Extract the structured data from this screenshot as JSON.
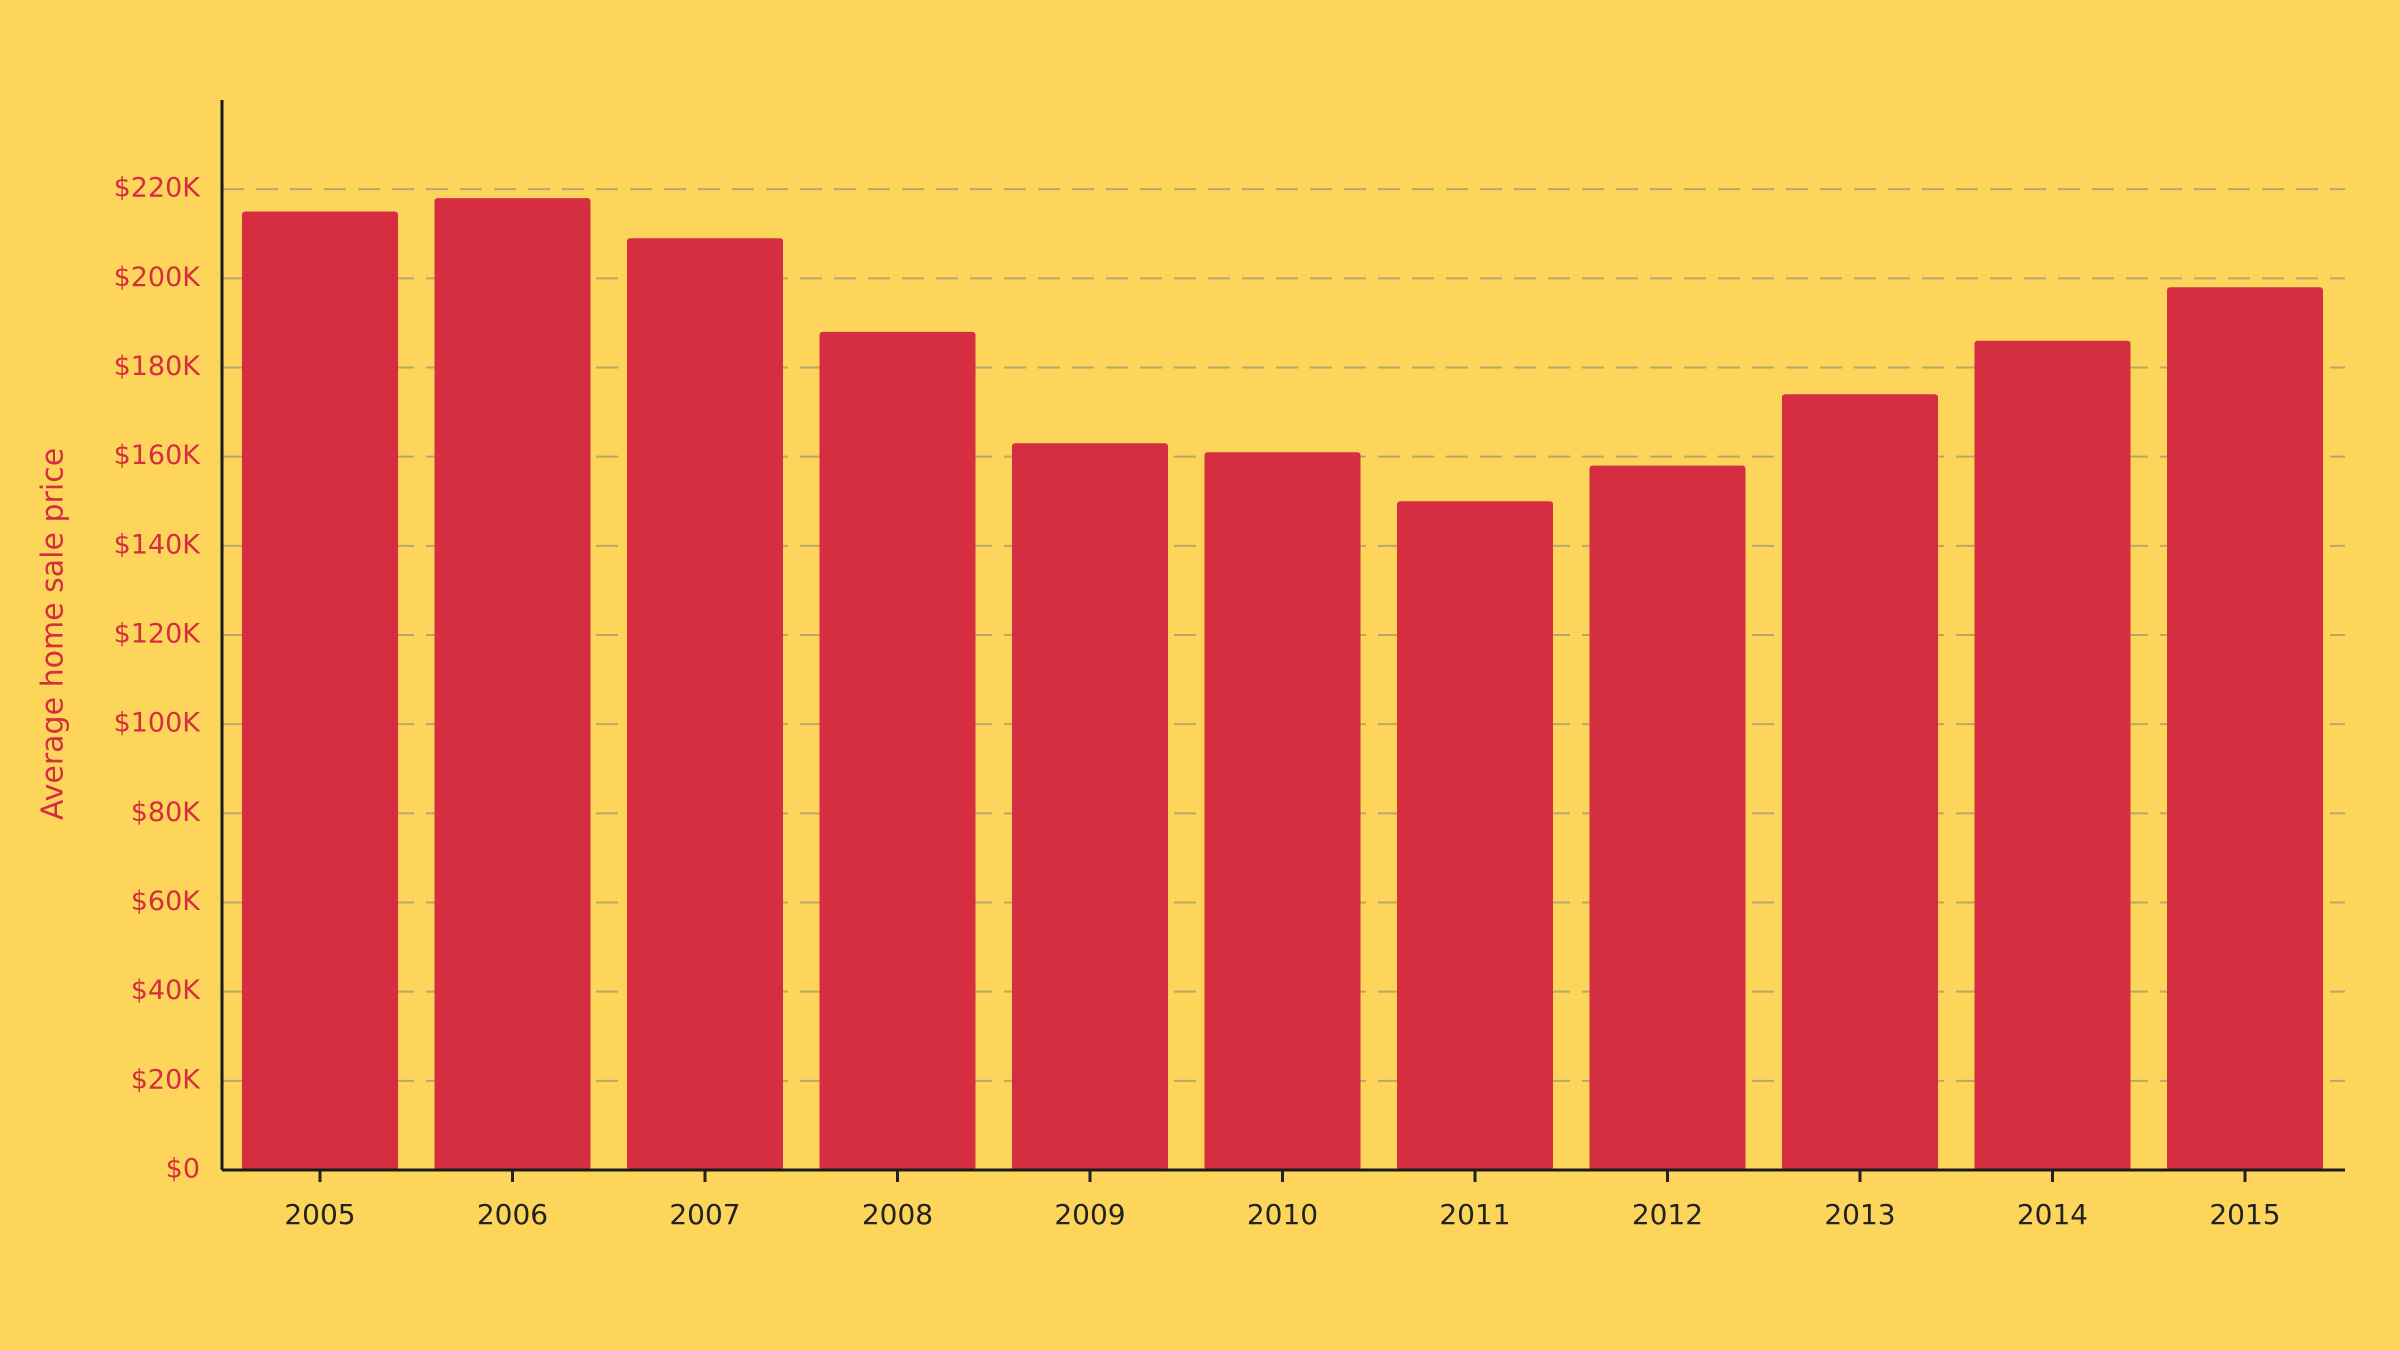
{
  "chart_data": {
    "type": "bar",
    "y_label": "Average home sale price",
    "categories": [
      "2005",
      "2006",
      "2007",
      "2008",
      "2009",
      "2010",
      "2011",
      "2012",
      "2013",
      "2014",
      "2015"
    ],
    "values": [
      215000,
      218000,
      209000,
      188000,
      163000,
      161000,
      150000,
      158000,
      174000,
      186000,
      198000
    ],
    "color": "#d42e40",
    "ylim": [
      0,
      240000
    ],
    "yticks": [
      {
        "value": 0,
        "label": "$0"
      },
      {
        "value": 20000,
        "label": "$20K"
      },
      {
        "value": 40000,
        "label": "$40K"
      },
      {
        "value": 60000,
        "label": "$60K"
      },
      {
        "value": 80000,
        "label": "$80K"
      },
      {
        "value": 100000,
        "label": "$100K"
      },
      {
        "value": 120000,
        "label": "$120K"
      },
      {
        "value": 140000,
        "label": "$140K"
      },
      {
        "value": 160000,
        "label": "$160K"
      },
      {
        "value": 180000,
        "label": "$180K"
      },
      {
        "value": 200000,
        "label": "$200K"
      },
      {
        "value": 220000,
        "label": "$220K"
      }
    ],
    "grid": true
  }
}
